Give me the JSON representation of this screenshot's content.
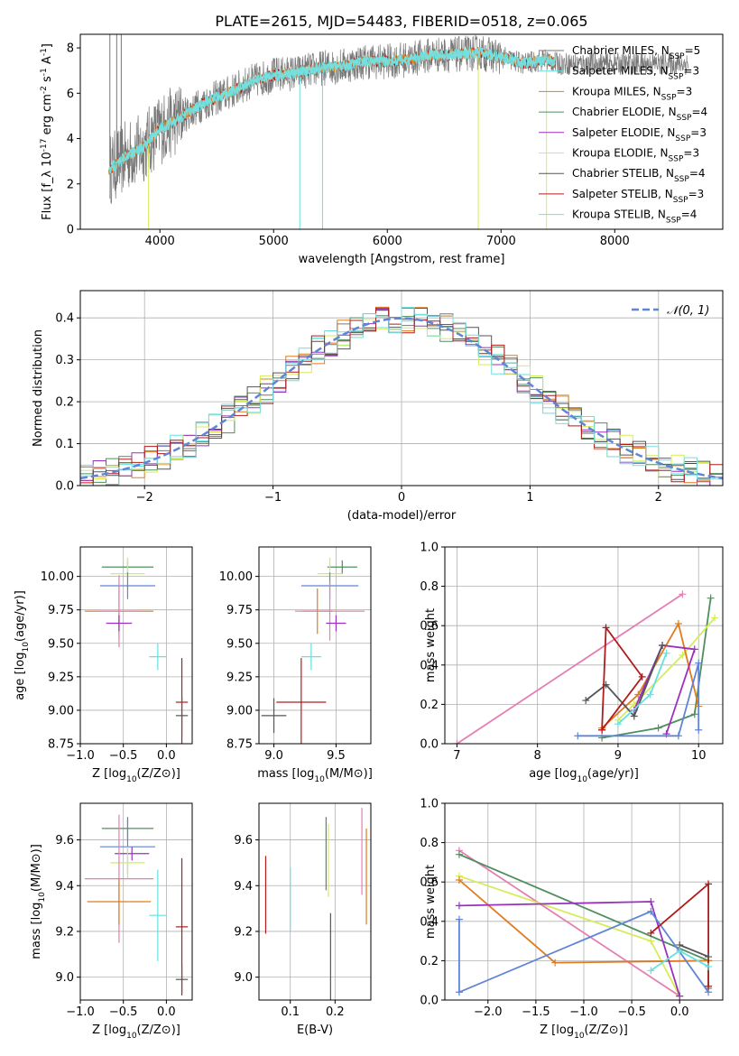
{
  "figure": {
    "title": "PLATE=2615, MJD=54483, FIBERID=0518, z=0.065"
  },
  "colors": {
    "chabrier_miles": "#777777",
    "salpeter_miles": "#66e0e0",
    "kroupa_miles": "#e07b1f",
    "chabrier_elodie": "#4f8f5f",
    "salpeter_elodie": "#9b30c0",
    "kroupa_elodie": "#d6ec5a",
    "chabrier_stelib": "#555555",
    "salpeter_stelib": "#b01c1c",
    "kroupa_stelib": "#79dede",
    "pink": "#e57fb2",
    "blue": "#5f85d6",
    "gaussian": "#5f85d6"
  },
  "chart_data": [
    {
      "id": "spectrum",
      "type": "line",
      "xlabel": "wavelength [Angstrom, rest frame]",
      "ylabel": "Flux [f_λ 10^-17 erg cm^-2 s^-1 A^-1]",
      "xlim": [
        3300,
        8950
      ],
      "ylim": [
        0,
        8.6
      ],
      "xticks": [
        4000,
        5000,
        6000,
        7000,
        8000
      ],
      "yticks": [
        0,
        2,
        4,
        6,
        8
      ],
      "legend_position": "upper right",
      "legend": [
        "Chabrier MILES, N_SSP=5",
        "Salpeter MILES, N_SSP=3",
        "Kroupa MILES, N_SSP=3",
        "Chabrier ELODIE, N_SSP=4",
        "Salpeter ELODIE, N_SSP=3",
        "Kroupa ELODIE, N_SSP=3",
        "Chabrier STELIB, N_SSP=4",
        "Salpeter STELIB, N_SSP=3",
        "Kroupa STELIB, N_SSP=4"
      ],
      "continuum": {
        "x": [
          3550,
          3700,
          3850,
          4000,
          4200,
          4400,
          4600,
          4800,
          5000,
          5200,
          5400,
          5600,
          5800,
          6000,
          6200,
          6400,
          6600,
          6800,
          7000,
          7200,
          7400,
          7500
        ],
        "y": [
          2.6,
          3.2,
          3.6,
          4.4,
          5.0,
          5.6,
          6.0,
          6.5,
          6.8,
          6.9,
          7.1,
          7.2,
          7.4,
          7.4,
          7.5,
          7.7,
          7.7,
          7.8,
          7.6,
          7.3,
          7.5,
          7.3
        ]
      },
      "model_extent": [
        3550,
        7480
      ],
      "data_extent": [
        3560,
        8650
      ],
      "spikes": [
        {
          "x": 5430,
          "to": 0
        },
        {
          "x": 5230,
          "to": 0
        },
        {
          "x": 6800,
          "to": 0
        },
        {
          "x": 7400,
          "to": 0
        },
        {
          "x": 3900,
          "to": 0
        },
        {
          "x": 3560,
          "to": 8.6
        },
        {
          "x": 3620,
          "to": 8.6
        },
        {
          "x": 3660,
          "to": 8.6
        }
      ]
    },
    {
      "id": "residuals",
      "type": "histogram",
      "xlabel": "(data-model)/error",
      "ylabel": "Normed distribution",
      "xlim": [
        -2.5,
        2.5
      ],
      "ylim": [
        0,
        0.465
      ],
      "xticks": [
        -2,
        -1,
        0,
        1,
        2
      ],
      "yticks": [
        0.0,
        0.1,
        0.2,
        0.3,
        0.4
      ],
      "bin_width": 0.1,
      "series_count": 9,
      "legend": [
        {
          "label": "𝒩(0, 1)",
          "style": "dashed"
        }
      ]
    },
    {
      "id": "age_vs_Z",
      "type": "errorbar",
      "xlabel": "Z [log10(Z/Z⊙)]",
      "ylabel": "age  [log10(age/yr)]",
      "xlim": [
        -1.0,
        0.3
      ],
      "ylim": [
        8.75,
        10.22
      ],
      "xticks": [
        -1.0,
        -0.5,
        0.0
      ],
      "yticks": [
        8.75,
        9.0,
        9.25,
        9.5,
        9.75,
        10.0
      ],
      "points": [
        {
          "series": "chabrier_elodie",
          "x": -0.45,
          "xerr": 0.3,
          "y": 10.07,
          "yerr": 0.05
        },
        {
          "series": "kroupa_elodie",
          "x": -0.45,
          "xerr": 0.2,
          "y": 10.02,
          "yerr": 0.12
        },
        {
          "series": "blue",
          "x": -0.45,
          "xerr": 0.32,
          "y": 9.93,
          "yerr": 0.1
        },
        {
          "series": "kroupa_miles",
          "x": -0.55,
          "xerr": 0.4,
          "y": 9.74,
          "yerr": 0.2
        },
        {
          "series": "pink",
          "x": -0.55,
          "xerr": 0.25,
          "y": 9.74,
          "yerr": 0.27
        },
        {
          "series": "salpeter_elodie",
          "x": -0.55,
          "xerr": 0.15,
          "y": 9.65,
          "yerr": 0.06
        },
        {
          "series": "salpeter_miles",
          "x": -0.1,
          "xerr": 0.1,
          "y": 9.4,
          "yerr": 0.1
        },
        {
          "series": "salpeter_stelib",
          "x": 0.18,
          "xerr": 0.07,
          "y": 9.06,
          "yerr": 0.33
        },
        {
          "series": "chabrier_stelib",
          "x": 0.18,
          "xerr": 0.07,
          "y": 8.96,
          "yerr": 0.15
        }
      ]
    },
    {
      "id": "age_vs_mass",
      "type": "errorbar",
      "xlabel": "mass [log10(M/M⊙)]",
      "ylabel": "",
      "xlim": [
        8.88,
        9.78
      ],
      "ylim": [
        8.75,
        10.22
      ],
      "xticks": [
        9.0,
        9.5
      ],
      "yticks": [
        8.75,
        9.0,
        9.25,
        9.5,
        9.75,
        10.0
      ],
      "points": [
        {
          "series": "chabrier_elodie",
          "x": 9.55,
          "xerr": 0.12,
          "y": 10.07,
          "yerr": 0.05
        },
        {
          "series": "kroupa_elodie",
          "x": 9.45,
          "xerr": 0.1,
          "y": 10.02,
          "yerr": 0.12
        },
        {
          "series": "blue",
          "x": 9.45,
          "xerr": 0.23,
          "y": 9.93,
          "yerr": 0.1
        },
        {
          "series": "kroupa_miles",
          "x": 9.35,
          "xerr": 0.12,
          "y": 9.74,
          "yerr": 0.17
        },
        {
          "series": "pink",
          "x": 9.45,
          "xerr": 0.28,
          "y": 9.74,
          "yerr": 0.22
        },
        {
          "series": "salpeter_elodie",
          "x": 9.5,
          "xerr": 0.08,
          "y": 9.65,
          "yerr": 0.06
        },
        {
          "series": "salpeter_miles",
          "x": 9.3,
          "xerr": 0.08,
          "y": 9.4,
          "yerr": 0.1
        },
        {
          "series": "salpeter_stelib",
          "x": 9.22,
          "xerr": 0.2,
          "y": 9.06,
          "yerr": 0.33
        },
        {
          "series": "chabrier_stelib",
          "x": 9.0,
          "xerr": 0.1,
          "y": 8.96,
          "yerr": 0.13
        }
      ]
    },
    {
      "id": "mass_weight_vs_age",
      "type": "line",
      "xlabel": "age  [log10(age/yr)]",
      "ylabel": "mass weight",
      "xlim": [
        6.85,
        10.3
      ],
      "ylim": [
        0,
        1.0
      ],
      "xticks": [
        7,
        8,
        9,
        10
      ],
      "yticks": [
        0.0,
        0.2,
        0.4,
        0.6,
        0.8,
        1.0
      ],
      "series": [
        {
          "name": "pink",
          "x": [
            7.0,
            9.8
          ],
          "y": [
            0.0,
            0.76
          ]
        },
        {
          "name": "chabrier_elodie",
          "x": [
            8.8,
            9.5,
            9.95,
            10.15
          ],
          "y": [
            0.03,
            0.08,
            0.15,
            0.74
          ]
        },
        {
          "name": "kroupa_elodie",
          "x": [
            9.0,
            9.2,
            9.8,
            10.2
          ],
          "y": [
            0.12,
            0.2,
            0.45,
            0.64
          ]
        },
        {
          "name": "kroupa_miles",
          "x": [
            8.8,
            9.25,
            9.75,
            10.0
          ],
          "y": [
            0.08,
            0.25,
            0.61,
            0.19
          ]
        },
        {
          "name": "salpeter_elodie",
          "x": [
            9.2,
            9.55,
            9.95,
            9.6
          ],
          "y": [
            0.17,
            0.5,
            0.48,
            0.05
          ]
        },
        {
          "name": "blue",
          "x": [
            8.5,
            9.75,
            10.0,
            10.0
          ],
          "y": [
            0.04,
            0.04,
            0.41,
            0.07
          ]
        },
        {
          "name": "chabrier_stelib",
          "x": [
            8.6,
            8.85,
            9.2,
            9.55
          ],
          "y": [
            0.22,
            0.3,
            0.14,
            0.5
          ]
        },
        {
          "name": "salpeter_stelib",
          "x": [
            8.8,
            8.85,
            9.3,
            8.8
          ],
          "y": [
            0.07,
            0.59,
            0.34,
            0.07
          ]
        },
        {
          "name": "salpeter_miles",
          "x": [
            9.0,
            9.4,
            9.6
          ],
          "y": [
            0.1,
            0.25,
            0.46
          ]
        }
      ]
    },
    {
      "id": "mass_vs_Z",
      "type": "errorbar",
      "xlabel": "Z [log10(Z/Z⊙)]",
      "ylabel": "mass [log10(M/M⊙)]",
      "xlim": [
        -1.0,
        0.3
      ],
      "ylim": [
        8.9,
        9.76
      ],
      "xticks": [
        -1.0,
        -0.5,
        0.0
      ],
      "yticks": [
        9.0,
        9.2,
        9.4,
        9.6
      ],
      "points": [
        {
          "series": "chabrier_elodie",
          "x": -0.45,
          "xerr": 0.3,
          "y": 9.65,
          "yerr": 0.05
        },
        {
          "series": "blue",
          "x": -0.45,
          "xerr": 0.32,
          "y": 9.57,
          "yerr": 0.12
        },
        {
          "series": "salpeter_elodie",
          "x": -0.4,
          "xerr": 0.2,
          "y": 9.54,
          "yerr": 0.03
        },
        {
          "series": "kroupa_elodie",
          "x": -0.45,
          "xerr": 0.2,
          "y": 9.5,
          "yerr": 0.07
        },
        {
          "series": "pink",
          "x": -0.55,
          "xerr": 0.4,
          "y": 9.43,
          "yerr": 0.28
        },
        {
          "series": "kroupa_miles",
          "x": -0.55,
          "xerr": 0.37,
          "y": 9.33,
          "yerr": 0.1
        },
        {
          "series": "salpeter_miles",
          "x": -0.1,
          "xerr": 0.1,
          "y": 9.27,
          "yerr": 0.2
        },
        {
          "series": "salpeter_stelib",
          "x": 0.18,
          "xerr": 0.07,
          "y": 9.22,
          "yerr": 0.3
        },
        {
          "series": "chabrier_stelib",
          "x": 0.18,
          "xerr": 0.07,
          "y": 8.99,
          "yerr": 0.06
        }
      ]
    },
    {
      "id": "mass_vs_ebv",
      "type": "errorbar",
      "xlabel": "E(B-V)",
      "ylabel": "",
      "xlim": [
        0.03,
        0.28
      ],
      "ylim": [
        8.9,
        9.76
      ],
      "xticks": [
        0.1,
        0.2
      ],
      "yticks": [
        9.0,
        9.2,
        9.4,
        9.6
      ],
      "points": [
        {
          "series": "salpeter_stelib",
          "x": 0.045,
          "xerr": 0,
          "y": 9.36,
          "yerr": 0.17
        },
        {
          "series": "salpeter_miles",
          "x": 0.1,
          "xerr": 0,
          "y": 9.34,
          "yerr": 0.14
        },
        {
          "series": "chabrier_elodie",
          "x": 0.18,
          "xerr": 0,
          "y": 9.54,
          "yerr": 0.16
        },
        {
          "series": "kroupa_elodie",
          "x": 0.185,
          "xerr": 0,
          "y": 9.51,
          "yerr": 0.16
        },
        {
          "series": "chabrier_stelib",
          "x": 0.19,
          "xerr": 0,
          "y": 9.05,
          "yerr": 0.23
        },
        {
          "series": "pink",
          "x": 0.26,
          "xerr": 0,
          "y": 9.55,
          "yerr": 0.19
        },
        {
          "series": "kroupa_miles",
          "x": 0.27,
          "xerr": 0,
          "y": 9.44,
          "yerr": 0.21
        }
      ]
    },
    {
      "id": "mass_weight_vs_Z",
      "type": "line",
      "xlabel": "Z [log10(Z/Z⊙)]",
      "ylabel": "mass weight",
      "xlim": [
        -2.45,
        0.45
      ],
      "ylim": [
        0,
        1.0
      ],
      "xticks": [
        -2.0,
        -1.5,
        -1.0,
        -0.5,
        0.0
      ],
      "yticks": [
        0.0,
        0.2,
        0.4,
        0.6,
        0.8,
        1.0
      ],
      "series": [
        {
          "name": "pink",
          "x": [
            -2.3,
            0.0
          ],
          "y": [
            0.76,
            0.02
          ]
        },
        {
          "name": "chabrier_elodie",
          "x": [
            -2.3,
            0.3,
            0.3
          ],
          "y": [
            0.74,
            0.2,
            0.06
          ]
        },
        {
          "name": "kroupa_elodie",
          "x": [
            -2.3,
            -0.3,
            0.0
          ],
          "y": [
            0.63,
            0.3,
            0.02
          ]
        },
        {
          "name": "kroupa_miles",
          "x": [
            -2.3,
            -1.3,
            0.3
          ],
          "y": [
            0.61,
            0.19,
            0.2
          ]
        },
        {
          "name": "salpeter_elodie",
          "x": [
            -2.3,
            -0.3,
            0.0
          ],
          "y": [
            0.48,
            0.5,
            0.02
          ]
        },
        {
          "name": "blue",
          "x": [
            -2.3,
            -2.3,
            -0.3,
            0.3
          ],
          "y": [
            0.41,
            0.04,
            0.45,
            0.04
          ]
        },
        {
          "name": "salpeter_stelib",
          "x": [
            -0.3,
            0.3,
            0.3
          ],
          "y": [
            0.34,
            0.59,
            0.07
          ]
        },
        {
          "name": "chabrier_stelib",
          "x": [
            0.0,
            0.3
          ],
          "y": [
            0.28,
            0.22
          ]
        },
        {
          "name": "salpeter_miles",
          "x": [
            -0.3,
            0.0,
            0.3
          ],
          "y": [
            0.15,
            0.25,
            0.17
          ]
        }
      ]
    }
  ]
}
